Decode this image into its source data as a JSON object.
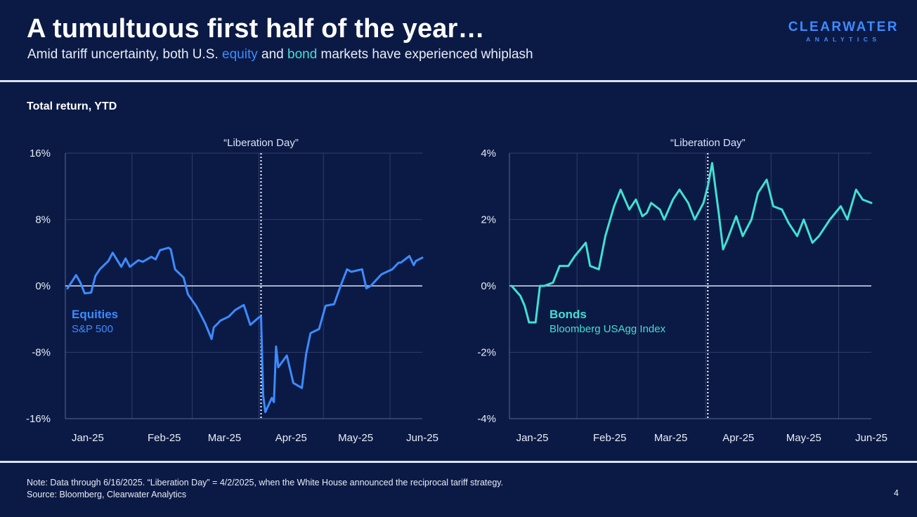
{
  "header": {
    "title": "A tumultuous first half of the year…",
    "subtitle_prefix": "Amid tariff uncertainty, both U.S. ",
    "subtitle_equity": "equity",
    "subtitle_and": " and ",
    "subtitle_bond": "bond",
    "subtitle_suffix": " markets have experienced whiplash"
  },
  "logo": {
    "top": "CLEARWATER",
    "bottom": "ANALYTICS"
  },
  "section_label": "Total return, YTD",
  "footer": {
    "note": "Note: Data through 6/16/2025. “Liberation Day” = 4/2/2025, when the White House announced the reciprocal tariff strategy.",
    "source": "Source: Bloomberg, Clearwater Analytics",
    "page_number": "4"
  },
  "colors": {
    "background": "#0b1a45",
    "equity": "#3d8bff",
    "bond": "#41e0d3",
    "rule": "#d9e2f6"
  },
  "chart_data": [
    {
      "type": "line",
      "title": "",
      "series": [
        {
          "name": "Equities",
          "subname": "S&P 500",
          "color": "#3d8bff",
          "x": [
            "2025-01-02",
            "2025-01-06",
            "2025-01-08",
            "2025-01-10",
            "2025-01-13",
            "2025-01-15",
            "2025-01-17",
            "2025-01-21",
            "2025-01-23",
            "2025-01-27",
            "2025-01-29",
            "2025-01-31",
            "2025-02-04",
            "2025-02-06",
            "2025-02-10",
            "2025-02-12",
            "2025-02-14",
            "2025-02-18",
            "2025-02-19",
            "2025-02-21",
            "2025-02-25",
            "2025-02-27",
            "2025-03-03",
            "2025-03-05",
            "2025-03-07",
            "2025-03-10",
            "2025-03-11",
            "2025-03-13",
            "2025-03-14",
            "2025-03-18",
            "2025-03-21",
            "2025-03-25",
            "2025-03-28",
            "2025-04-01",
            "2025-04-02",
            "2025-04-03",
            "2025-04-04",
            "2025-04-07",
            "2025-04-08",
            "2025-04-09",
            "2025-04-10",
            "2025-04-14",
            "2025-04-17",
            "2025-04-21",
            "2025-04-23",
            "2025-04-25",
            "2025-04-29",
            "2025-05-02",
            "2025-05-06",
            "2025-05-09",
            "2025-05-12",
            "2025-05-14",
            "2025-05-19",
            "2025-05-21",
            "2025-05-23",
            "2025-05-28",
            "2025-06-02",
            "2025-06-05",
            "2025-06-06",
            "2025-06-10",
            "2025-06-12",
            "2025-06-13",
            "2025-06-16"
          ],
          "values": [
            -0.3,
            1.3,
            0.4,
            -0.9,
            -0.8,
            1.2,
            2.0,
            3.0,
            4.0,
            2.3,
            3.3,
            2.3,
            3.1,
            2.9,
            3.5,
            3.2,
            4.3,
            4.6,
            4.4,
            2.0,
            1.0,
            -1.0,
            -2.5,
            -3.5,
            -4.5,
            -6.4,
            -5.0,
            -4.5,
            -4.2,
            -3.7,
            -2.9,
            -2.3,
            -4.7,
            -3.8,
            -3.7,
            -13.2,
            -15.2,
            -13.5,
            -14.0,
            -7.3,
            -9.8,
            -8.4,
            -11.7,
            -12.3,
            -8.2,
            -5.7,
            -5.2,
            -2.4,
            -2.2,
            0.0,
            2.0,
            1.7,
            2.0,
            -0.3,
            0.0,
            1.4,
            2.0,
            2.8,
            2.8,
            3.6,
            2.5,
            3.0,
            3.4
          ]
        }
      ],
      "x_ticks": [
        "Jan-25",
        "Feb-25",
        "Mar-25",
        "Apr-25",
        "May-25",
        "Jun-25"
      ],
      "y_ticks": [
        "16%",
        "8%",
        "0%",
        "-8%",
        "-16%"
      ],
      "ylim": [
        -16,
        16
      ],
      "annotation": "“Liberation Day”",
      "event_date": "2025-04-02",
      "legend_placement": "lower-left, inside plot"
    },
    {
      "type": "line",
      "title": "",
      "series": [
        {
          "name": "Bonds",
          "subname": "Bloomberg USAgg Index",
          "color": "#41e0d3",
          "x": [
            "2025-01-02",
            "2025-01-06",
            "2025-01-08",
            "2025-01-10",
            "2025-01-13",
            "2025-01-15",
            "2025-01-17",
            "2025-01-21",
            "2025-01-24",
            "2025-01-28",
            "2025-01-31",
            "2025-02-05",
            "2025-02-07",
            "2025-02-11",
            "2025-02-14",
            "2025-02-18",
            "2025-02-21",
            "2025-02-25",
            "2025-02-28",
            "2025-03-03",
            "2025-03-05",
            "2025-03-07",
            "2025-03-11",
            "2025-03-13",
            "2025-03-17",
            "2025-03-20",
            "2025-03-24",
            "2025-03-27",
            "2025-03-31",
            "2025-04-02",
            "2025-04-04",
            "2025-04-07",
            "2025-04-09",
            "2025-04-11",
            "2025-04-15",
            "2025-04-18",
            "2025-04-22",
            "2025-04-25",
            "2025-04-29",
            "2025-05-02",
            "2025-05-06",
            "2025-05-09",
            "2025-05-13",
            "2025-05-16",
            "2025-05-20",
            "2025-05-23",
            "2025-05-28",
            "2025-06-02",
            "2025-06-05",
            "2025-06-09",
            "2025-06-12",
            "2025-06-16"
          ],
          "values": [
            0.0,
            -0.3,
            -0.6,
            -1.1,
            -1.1,
            0.0,
            0.0,
            0.1,
            0.6,
            0.6,
            0.9,
            1.3,
            0.6,
            0.5,
            1.5,
            2.4,
            2.9,
            2.3,
            2.6,
            2.1,
            2.2,
            2.5,
            2.3,
            2.0,
            2.6,
            2.9,
            2.5,
            2.0,
            2.5,
            3.0,
            3.7,
            2.2,
            1.1,
            1.4,
            2.1,
            1.5,
            2.0,
            2.8,
            3.2,
            2.4,
            2.3,
            1.9,
            1.5,
            2.0,
            1.3,
            1.5,
            2.0,
            2.4,
            2.0,
            2.9,
            2.6,
            2.5
          ]
        }
      ],
      "x_ticks": [
        "Jan-25",
        "Feb-25",
        "Mar-25",
        "Apr-25",
        "May-25",
        "Jun-25"
      ],
      "y_ticks": [
        "4%",
        "2%",
        "0%",
        "-2%",
        "-4%"
      ],
      "ylim": [
        -4,
        4
      ],
      "annotation": "“Liberation Day”",
      "event_date": "2025-04-02",
      "legend_placement": "lower-left, inside plot"
    }
  ]
}
